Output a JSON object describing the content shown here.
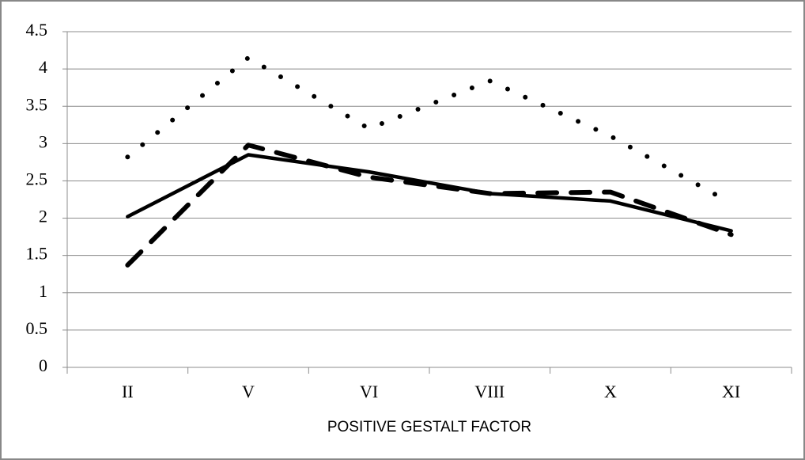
{
  "chart_data": {
    "type": "line",
    "x_label": "POSITIVE GESTALT FACTOR",
    "categories": [
      "II",
      "V",
      "VI",
      "VIII",
      "X",
      "XI"
    ],
    "series": [
      {
        "color": "#000000",
        "style": "dotted",
        "values": [
          2.82,
          4.15,
          3.2,
          3.84,
          3.1,
          2.2
        ]
      },
      {
        "color": "#000000",
        "style": "dashed",
        "values": [
          1.37,
          2.98,
          2.55,
          2.33,
          2.35,
          1.78
        ]
      },
      {
        "color": "#000000",
        "style": "solid",
        "values": [
          2.02,
          2.85,
          2.62,
          2.33,
          2.23,
          1.83
        ]
      }
    ],
    "ylim": [
      0,
      4.5
    ],
    "yticks": [
      0,
      0.5,
      1,
      1.5,
      2,
      2.5,
      3,
      3.5,
      4,
      4.5
    ],
    "grid": true
  }
}
